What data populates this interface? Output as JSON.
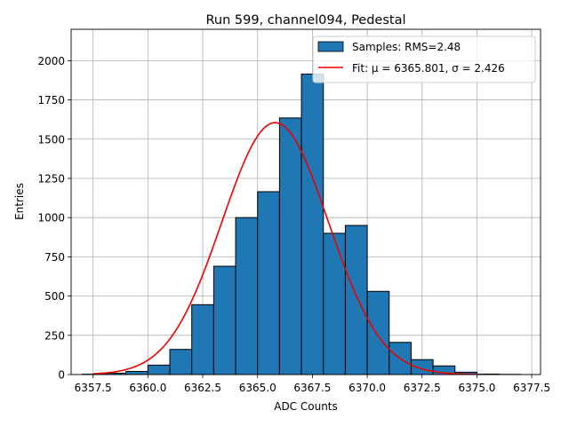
{
  "chart_data": {
    "type": "bar",
    "title": "Run 599, channel094, Pedestal",
    "xlabel": "ADC Counts",
    "ylabel": "Entries",
    "xlim": [
      6356.5,
      6377.9
    ],
    "ylim": [
      0,
      2200
    ],
    "xticks": [
      6357.5,
      6360.0,
      6362.5,
      6365.0,
      6367.5,
      6370.0,
      6372.5,
      6375.0,
      6377.5
    ],
    "xtick_labels": [
      "6357.5",
      "6360.0",
      "6362.5",
      "6365.0",
      "6367.5",
      "6370.0",
      "6372.5",
      "6375.0",
      "6377.5"
    ],
    "yticks": [
      0,
      250,
      500,
      750,
      1000,
      1250,
      1500,
      1750,
      2000
    ],
    "ytick_labels": [
      "0",
      "250",
      "500",
      "750",
      "1000",
      "1250",
      "1500",
      "1750",
      "2000"
    ],
    "grid": true,
    "bin_width": 1.0,
    "bin_edges": [
      6357,
      6358,
      6359,
      6360,
      6361,
      6362,
      6363,
      6364,
      6365,
      6366,
      6367,
      6368,
      6369,
      6370,
      6371,
      6372,
      6373,
      6374,
      6375,
      6376,
      6377
    ],
    "counts": [
      2,
      8,
      20,
      60,
      160,
      445,
      690,
      1000,
      1165,
      1635,
      1915,
      900,
      950,
      530,
      205,
      95,
      55,
      15,
      3,
      1
    ],
    "fit": {
      "mu": 6365.801,
      "sigma": 2.426,
      "amplitude": 1605,
      "x_range": [
        6357.5,
        6375.0
      ]
    },
    "legend": {
      "position": "upper right",
      "entries": [
        {
          "label": "Samples: RMS=2.48",
          "kind": "patch"
        },
        {
          "label": "Fit: μ = 6365.801, σ = 2.426",
          "kind": "line"
        }
      ]
    },
    "colors": {
      "bar_fill": "#1f77b4",
      "bar_edge": "#000000",
      "fit_line": "#ee0000",
      "grid": "#b0b0b0"
    }
  }
}
